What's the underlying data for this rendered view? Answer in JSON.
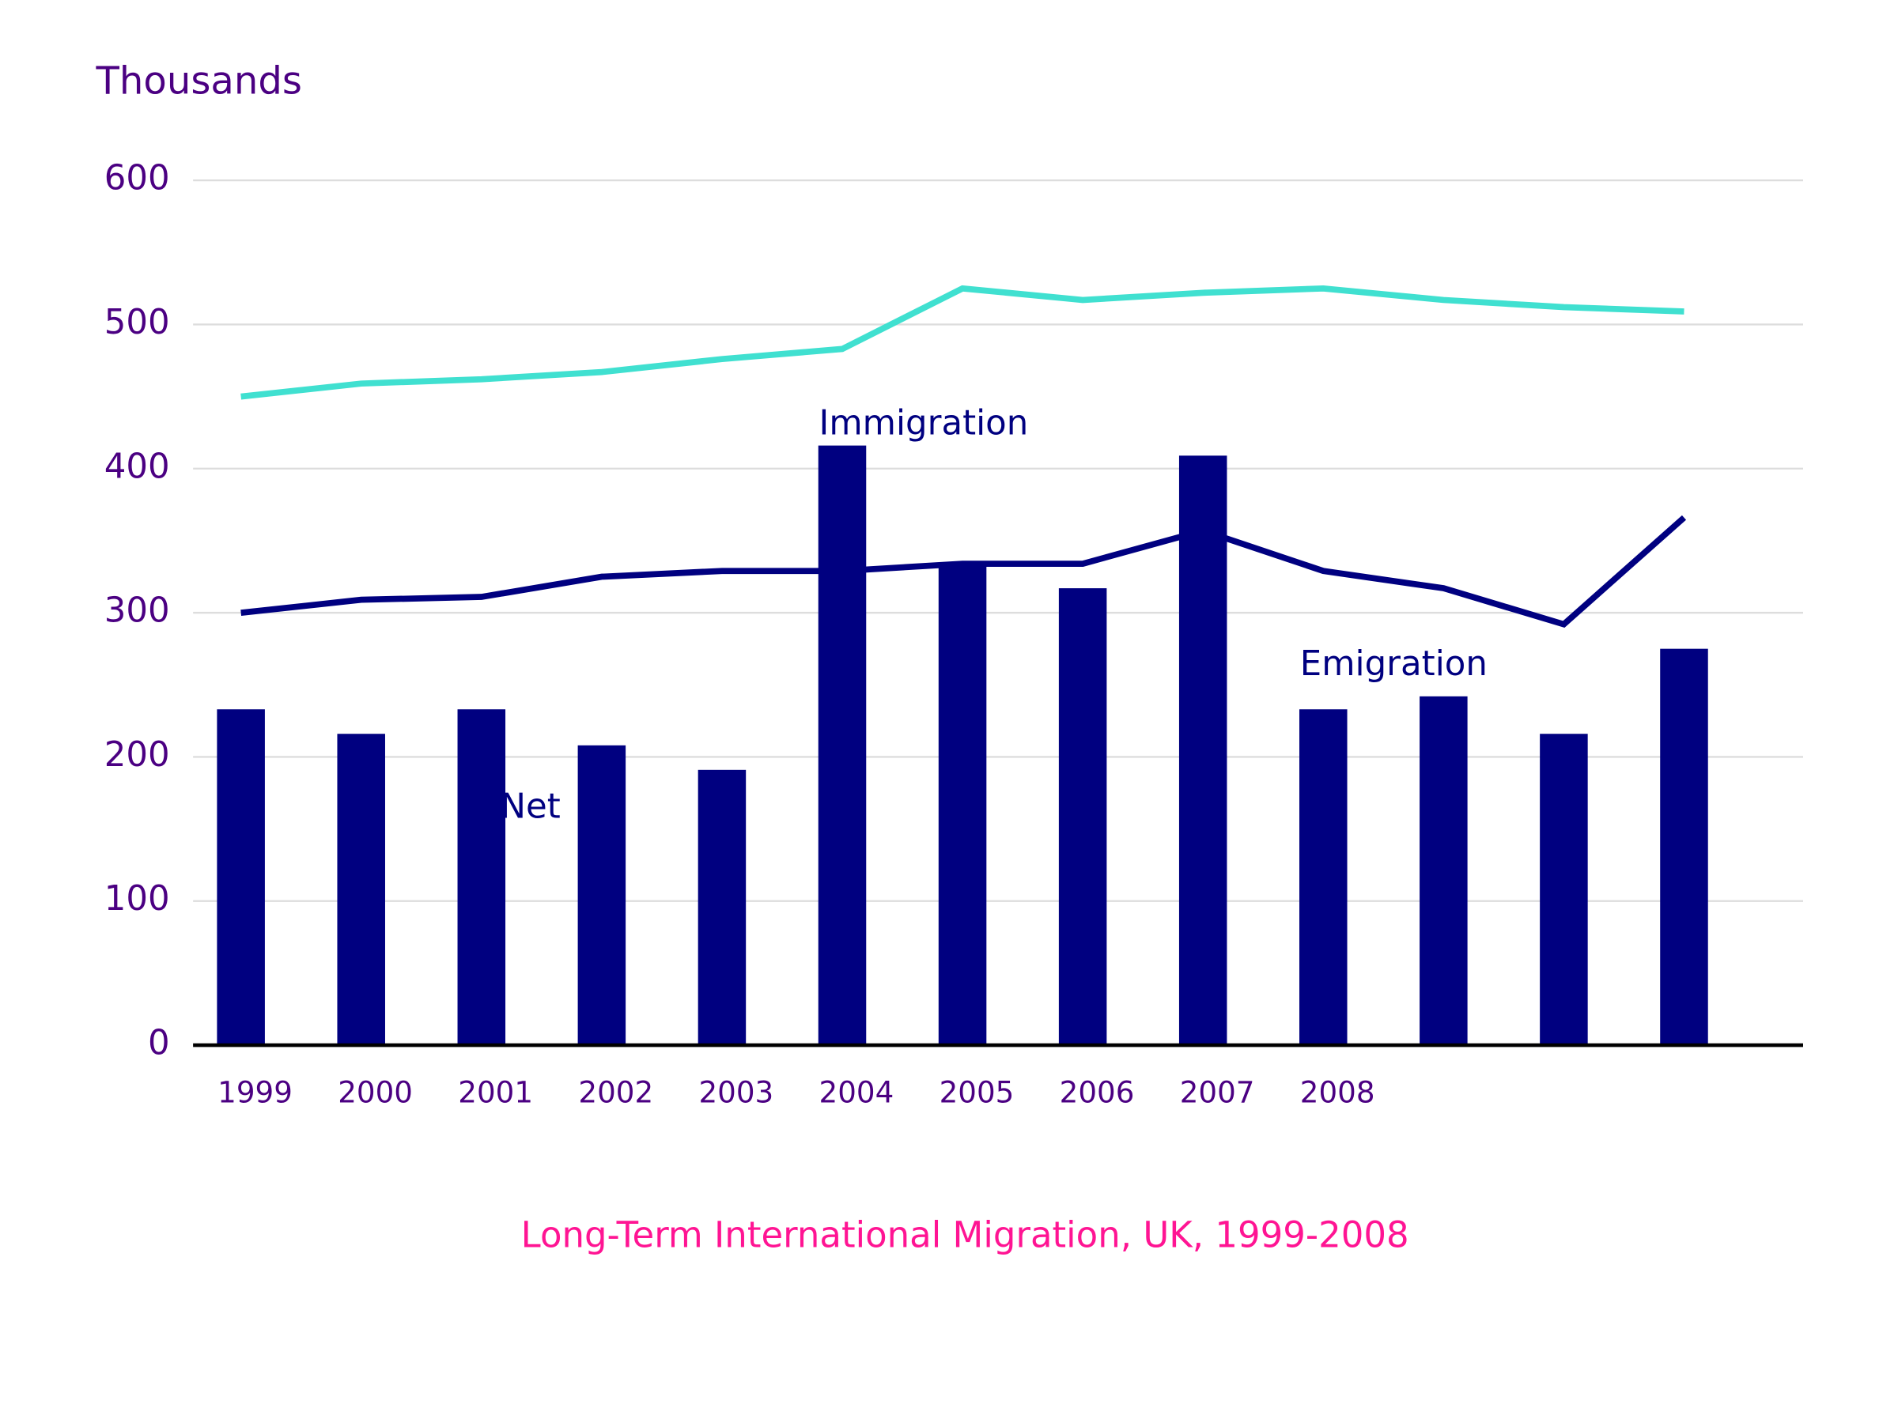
{
  "chart_data": {
    "type": "bar",
    "title": "Long-Term International Migration, UK, 1999-2008",
    "y_label": "Thousands",
    "categories": [
      "1999",
      "2000",
      "2001",
      "2002",
      "2003",
      "2004",
      "2005",
      "2006",
      "2007",
      "2008",
      null,
      null,
      null
    ],
    "series": [
      {
        "type": "bar",
        "color": "#000080",
        "values": [
          233,
          216,
          233,
          208,
          191,
          416,
          334,
          317,
          409,
          233,
          242,
          216,
          275
        ]
      },
      {
        "type": "line",
        "color": "#40e0d0",
        "values": [
          450,
          459,
          462,
          467,
          476,
          483,
          525,
          517,
          522,
          525,
          517,
          512,
          509
        ]
      },
      {
        "type": "line",
        "color": "#000080",
        "values": [
          300,
          309,
          311,
          325,
          329,
          329,
          334,
          334,
          357,
          329,
          317,
          292,
          366
        ]
      }
    ],
    "annotations": [
      {
        "text": "Immigration",
        "x": 5,
        "y": 430
      },
      {
        "text": "Emigration",
        "x": 9,
        "y": 263
      },
      {
        "text": "Net",
        "x": 2.35,
        "y": 164
      }
    ],
    "ylim": [
      0,
      600
    ],
    "yticks": [
      0,
      100,
      200,
      300,
      400,
      500,
      600
    ],
    "grid": true
  }
}
